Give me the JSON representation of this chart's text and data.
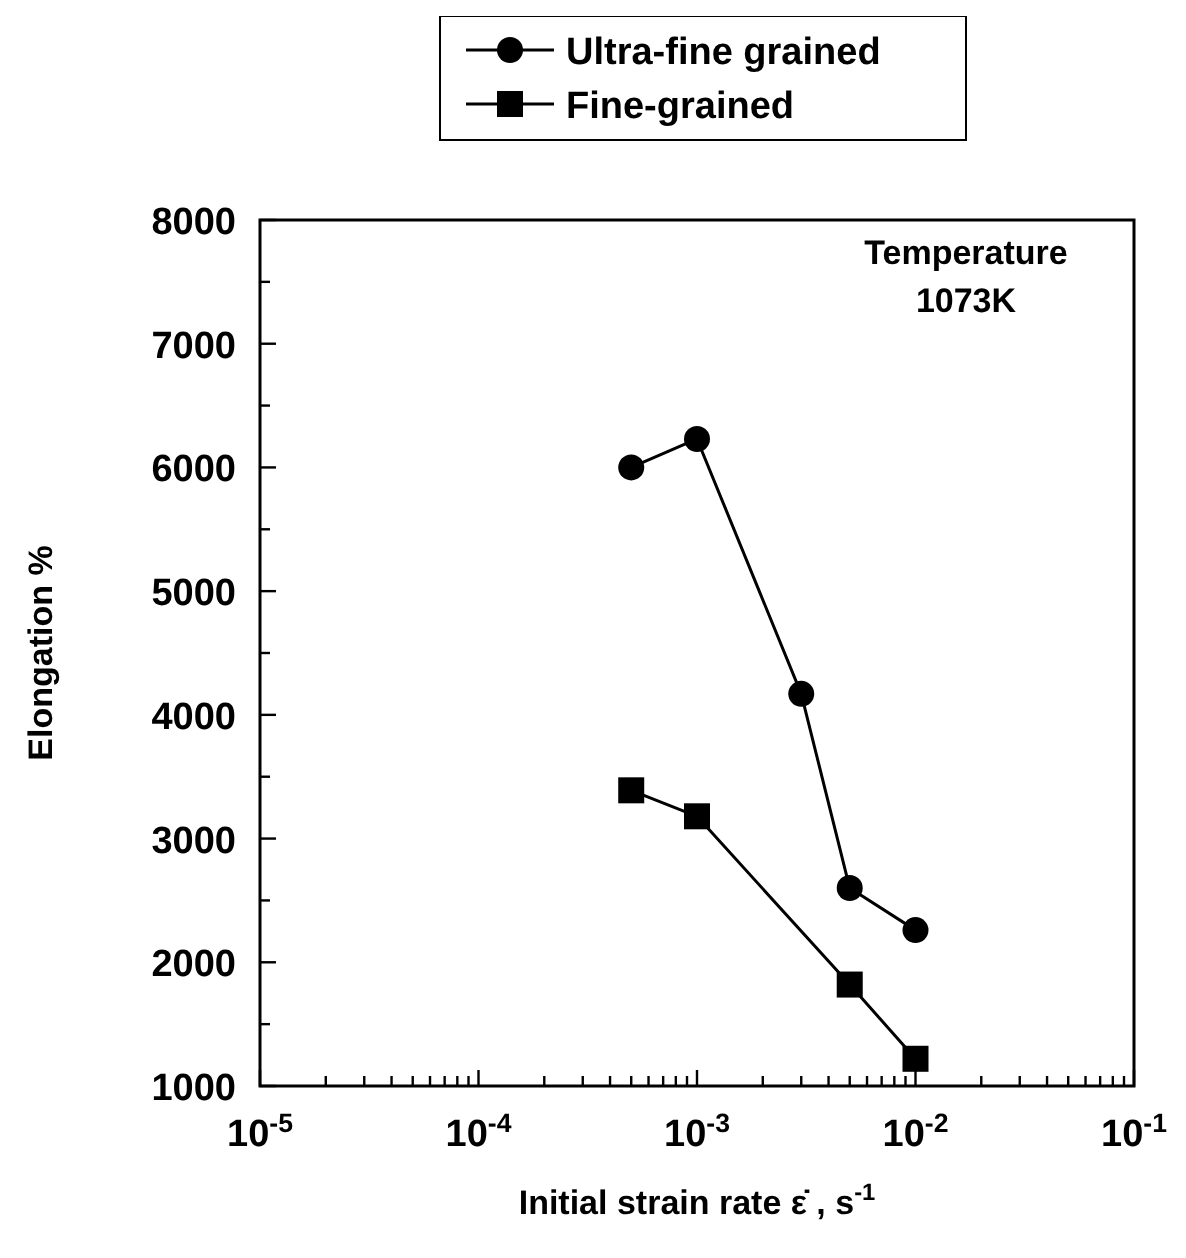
{
  "chart_data": {
    "type": "line",
    "xlabel": "Initial strain rate ε̇ , s$^{-1}$",
    "ylabel": "Elongation %",
    "log": "x",
    "legend": "top",
    "marker": "circle",
    "line_style": "solid",
    "grid": false,
    "annotations": [
      "Temperature\n1073K"
    ],
    "xlim": [
      1e-05,
      0.1
    ],
    "ylim": [
      1000,
      8000
    ],
    "xticks": [
      {
        "value": 1e-05,
        "label": "10$^{-5}$"
      },
      {
        "value": 2e-05,
        "label": null
      },
      {
        "value": 3e-05,
        "label": null
      },
      {
        "value": 4e-05,
        "label": null
      },
      {
        "value": 5e-05,
        "label": null
      },
      {
        "value": 6e-05,
        "label": null
      },
      {
        "value": 7e-05,
        "label": null
      },
      {
        "value": 8e-05,
        "label": null
      },
      {
        "value": 9e-05,
        "label": null
      },
      {
        "value": 0.0001,
        "label": "10$^{-4}$"
      },
      {
        "value": 0.0002,
        "label": null
      },
      {
        "value": 0.0003,
        "label": null
      },
      {
        "value": 0.0004,
        "label": null
      },
      {
        "value": 0.0005,
        "label": null
      },
      {
        "value": 0.0006,
        "label": null
      },
      {
        "value": 0.0007,
        "label": null
      },
      {
        "value": 0.0008,
        "label": null
      },
      {
        "value": 0.0009,
        "label": null
      },
      {
        "value": 0.001,
        "label": "10$^{-3}$"
      },
      {
        "value": 0.002,
        "label": null
      },
      {
        "value": 0.003,
        "label": null
      },
      {
        "value": 0.004,
        "label": null
      },
      {
        "value": 0.005,
        "label": null
      },
      {
        "value": 0.006,
        "label": null
      },
      {
        "value": 0.007,
        "label": null
      },
      {
        "value": 0.008,
        "label": null
      },
      {
        "value": 0.009,
        "label": null
      },
      {
        "value": 0.01,
        "label": "10$^{-2}$"
      },
      {
        "value": 0.02,
        "label": null
      },
      {
        "value": 0.03,
        "label": null
      },
      {
        "value": 0.04,
        "label": null
      },
      {
        "value": 0.05,
        "label": null
      },
      {
        "value": 0.06,
        "label": null
      },
      {
        "value": 0.07,
        "label": null
      },
      {
        "value": 0.08,
        "label": null
      },
      {
        "value": 0.09,
        "label": null
      },
      {
        "value": 0.1,
        "label": "10$^{-1}$"
      }
    ],
    "yticks": [
      1000,
      {
        "value": 1500,
        "label": null
      },
      2000,
      {
        "value": 2500,
        "label": null
      },
      3000,
      {
        "value": 3500,
        "label": null
      },
      4000,
      {
        "value": 4500,
        "label": null
      },
      5000,
      {
        "value": 5500,
        "label": null
      },
      6000,
      {
        "value": 6500,
        "label": null
      },
      7000,
      {
        "value": 7500,
        "label": null
      },
      8000
    ],
    "series": [
      {
        "name": "Ultra-fine grained",
        "color": "#000000",
        "marker": "circle",
        "x": [
          0.0005,
          0.001,
          0.003,
          0.005,
          0.01
        ],
        "values": [
          6000,
          6230,
          4170,
          2600,
          2260
        ]
      },
      {
        "name": "Fine-grained",
        "color": "#000000",
        "marker": "square",
        "x": [
          0.0005,
          0.001,
          0.005,
          0.01
        ],
        "values": [
          3390,
          3180,
          1820,
          1220
        ]
      }
    ]
  }
}
